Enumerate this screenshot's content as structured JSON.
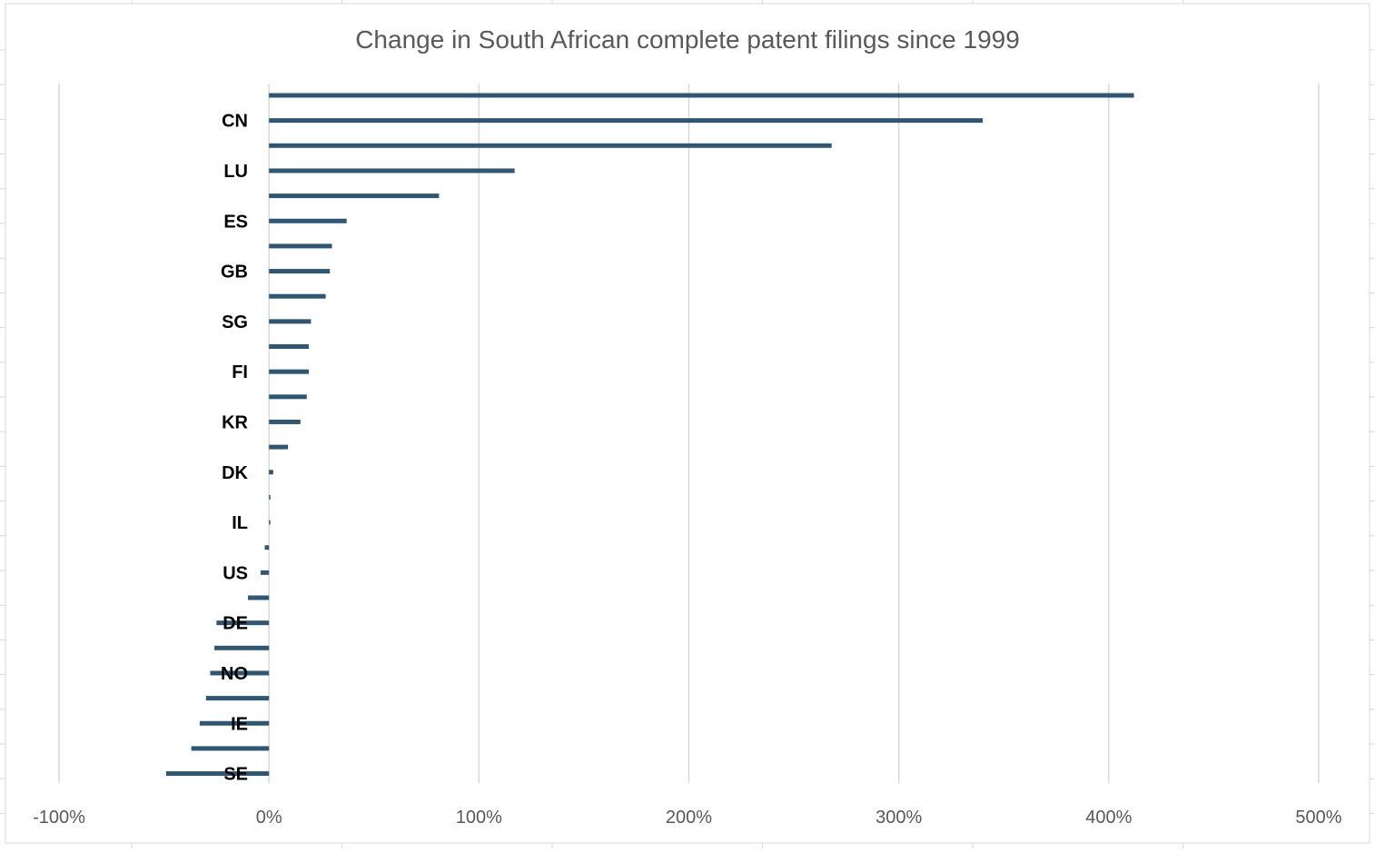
{
  "chart_data": {
    "type": "bar",
    "orientation": "horizontal",
    "title": "Change in South African complete patent filings since 1999",
    "xlabel": "",
    "ylabel": "",
    "x_range": [
      -1,
      5
    ],
    "x_tick_values": [
      -1,
      0,
      1,
      2,
      3,
      4,
      5
    ],
    "x_tick_labels": [
      "-100%",
      "0%",
      "100%",
      "200%",
      "300%",
      "400%",
      "500%"
    ],
    "grid": "vertical",
    "legend": "none",
    "categories": [
      "",
      "CN",
      "",
      "LU",
      "",
      "ES",
      "",
      "GB",
      "",
      "SG",
      "",
      "FI",
      "",
      "KR",
      "",
      "DK",
      "",
      "IL",
      "",
      "US",
      "",
      "DE",
      "",
      "NO",
      "",
      "IE",
      "",
      "SE"
    ],
    "values": [
      4.12,
      3.4,
      2.68,
      1.17,
      0.81,
      0.37,
      0.3,
      0.29,
      0.27,
      0.2,
      0.19,
      0.19,
      0.18,
      0.15,
      0.09,
      0.02,
      0.005,
      0.0,
      -0.02,
      -0.04,
      -0.1,
      -0.25,
      -0.26,
      -0.28,
      -0.3,
      -0.33,
      -0.37,
      -0.49
    ],
    "colors": {
      "bar": "#2e5775",
      "grid": "#d9d9d9",
      "text": "#595959"
    }
  }
}
